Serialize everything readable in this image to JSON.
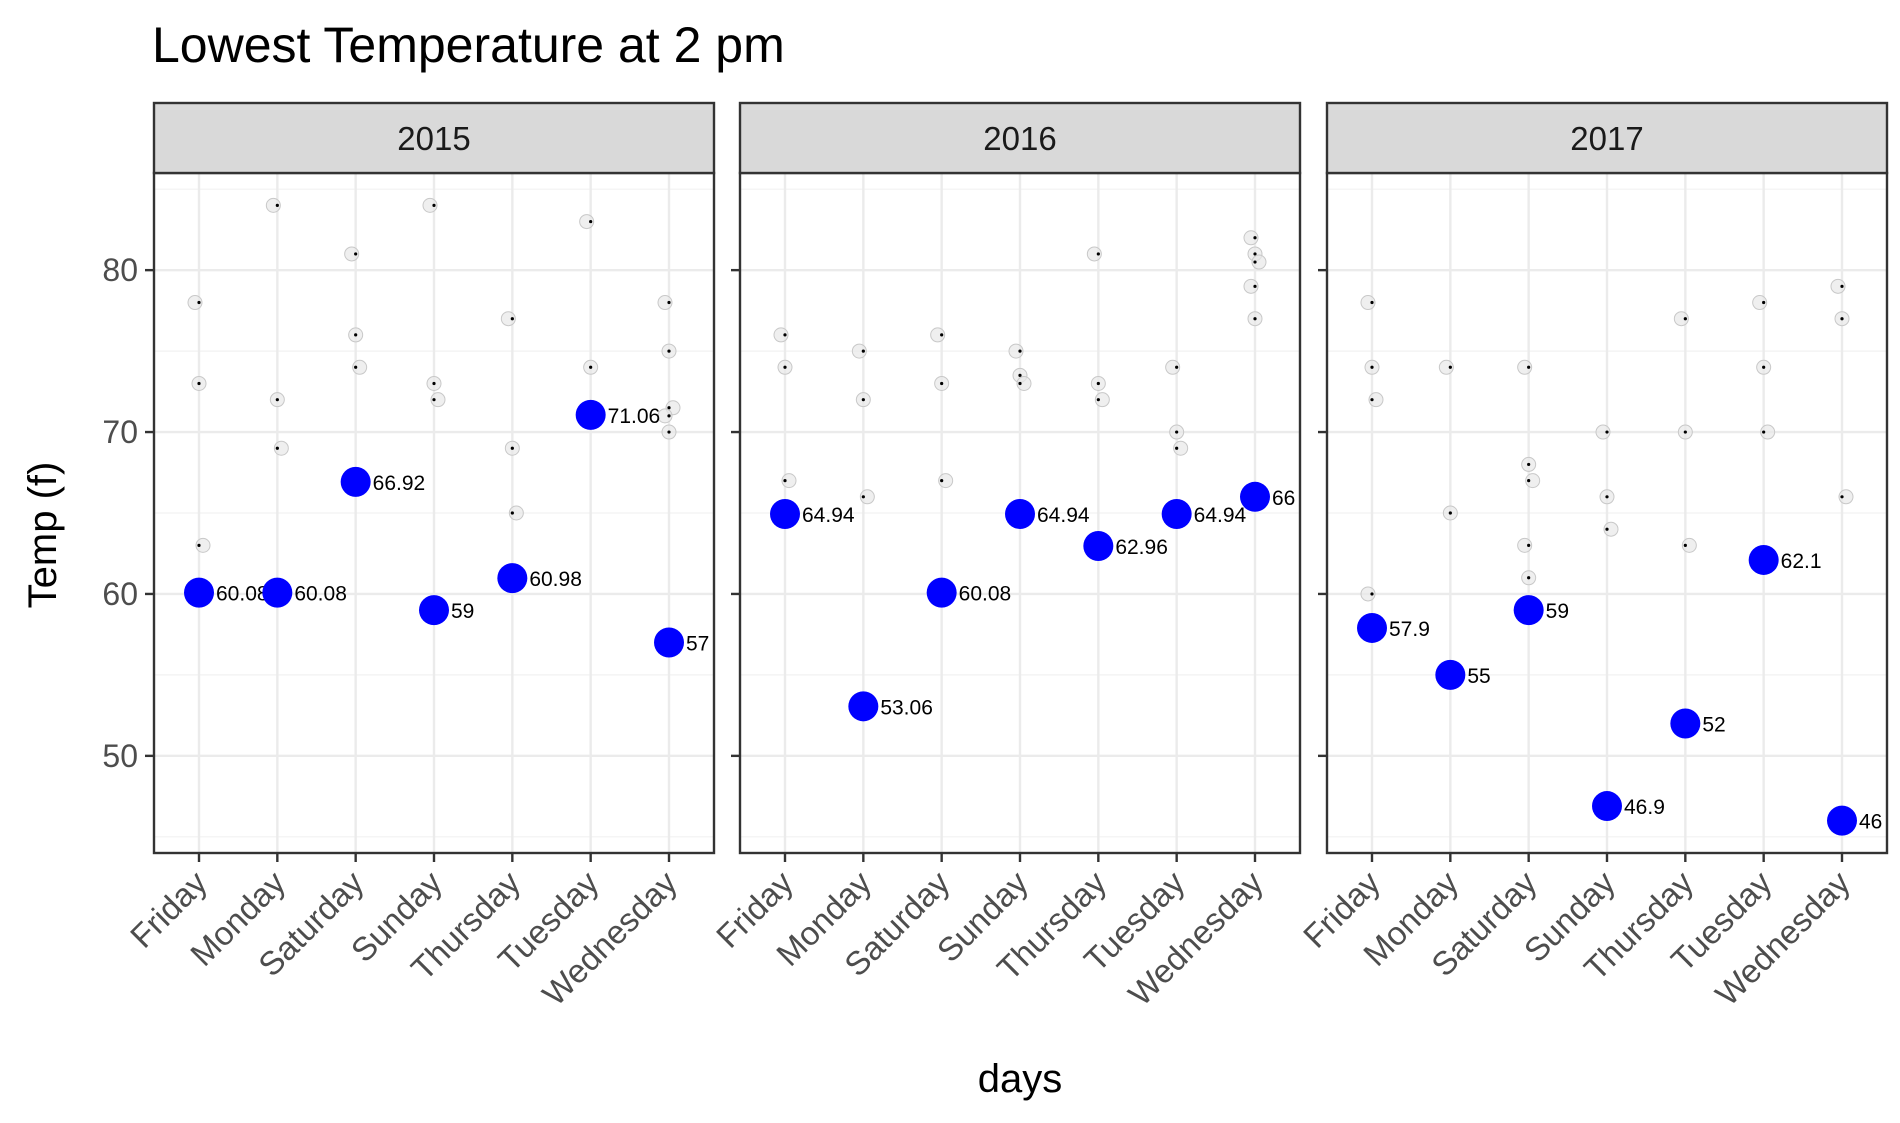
{
  "chart_data": {
    "type": "scatter",
    "title": "Lowest Temperature at 2 pm",
    "xlabel": "days",
    "ylabel": "Temp (f)",
    "ylim": [
      44,
      86
    ],
    "yticks": [
      50,
      60,
      70,
      80
    ],
    "grid": true,
    "categories": [
      "Friday",
      "Monday",
      "Saturday",
      "Sunday",
      "Thursday",
      "Tuesday",
      "Wednesday"
    ],
    "colors": {
      "highlight": "#0000ff",
      "background_point_fill": "#e8e8e8",
      "background_point_stroke": "#c8c8c8",
      "strip_fill": "#d9d9d9",
      "panel_border": "#333333",
      "grid": "#ebebeb"
    },
    "panels": [
      {
        "facet": "2015",
        "lowest": [
          {
            "day": "Friday",
            "value": 60.08,
            "label": "60.08"
          },
          {
            "day": "Monday",
            "value": 60.08,
            "label": "60.08"
          },
          {
            "day": "Saturday",
            "value": 66.92,
            "label": "66.92"
          },
          {
            "day": "Sunday",
            "value": 59,
            "label": "59"
          },
          {
            "day": "Thursday",
            "value": 60.98,
            "label": "60.98"
          },
          {
            "day": "Tuesday",
            "value": 71.06,
            "label": "71.06"
          },
          {
            "day": "Wednesday",
            "value": 57,
            "label": "57"
          }
        ],
        "observations": [
          {
            "day": "Friday",
            "values": [
              78,
              73,
              63
            ]
          },
          {
            "day": "Monday",
            "values": [
              84,
              72,
              69
            ]
          },
          {
            "day": "Saturday",
            "values": [
              81,
              76,
              74
            ]
          },
          {
            "day": "Sunday",
            "values": [
              84,
              73,
              72
            ]
          },
          {
            "day": "Thursday",
            "values": [
              77,
              69,
              65
            ]
          },
          {
            "day": "Tuesday",
            "values": [
              83,
              74
            ]
          },
          {
            "day": "Wednesday",
            "values": [
              78,
              75,
              71.5,
              71,
              70
            ]
          }
        ]
      },
      {
        "facet": "2016",
        "lowest": [
          {
            "day": "Friday",
            "value": 64.94,
            "label": "64.94"
          },
          {
            "day": "Monday",
            "value": 53.06,
            "label": "53.06"
          },
          {
            "day": "Saturday",
            "value": 60.08,
            "label": "60.08"
          },
          {
            "day": "Sunday",
            "value": 64.94,
            "label": "64.94"
          },
          {
            "day": "Thursday",
            "value": 62.96,
            "label": "62.96"
          },
          {
            "day": "Tuesday",
            "value": 64.94,
            "label": "64.94"
          },
          {
            "day": "Wednesday",
            "value": 66,
            "label": "66"
          }
        ],
        "observations": [
          {
            "day": "Friday",
            "values": [
              76,
              74,
              67
            ]
          },
          {
            "day": "Monday",
            "values": [
              75,
              72,
              66
            ]
          },
          {
            "day": "Saturday",
            "values": [
              76,
              73,
              67
            ]
          },
          {
            "day": "Sunday",
            "values": [
              75,
              73.5,
              73
            ]
          },
          {
            "day": "Thursday",
            "values": [
              81,
              73,
              72
            ]
          },
          {
            "day": "Tuesday",
            "values": [
              74,
              70,
              69
            ]
          },
          {
            "day": "Wednesday",
            "values": [
              82,
              81,
              80.5,
              79,
              77
            ]
          }
        ]
      },
      {
        "facet": "2017",
        "lowest": [
          {
            "day": "Friday",
            "value": 57.9,
            "label": "57.9"
          },
          {
            "day": "Monday",
            "value": 55,
            "label": "55"
          },
          {
            "day": "Saturday",
            "value": 59,
            "label": "59"
          },
          {
            "day": "Sunday",
            "value": 46.9,
            "label": "46.9"
          },
          {
            "day": "Thursday",
            "value": 52,
            "label": "52"
          },
          {
            "day": "Tuesday",
            "value": 62.1,
            "label": "62.1"
          },
          {
            "day": "Wednesday",
            "value": 46,
            "label": "46"
          }
        ],
        "observations": [
          {
            "day": "Friday",
            "values": [
              78,
              74,
              72,
              60
            ]
          },
          {
            "day": "Monday",
            "values": [
              74,
              65
            ]
          },
          {
            "day": "Saturday",
            "values": [
              74,
              68,
              67,
              63,
              61
            ]
          },
          {
            "day": "Sunday",
            "values": [
              70,
              66,
              64
            ]
          },
          {
            "day": "Thursday",
            "values": [
              77,
              70,
              63
            ]
          },
          {
            "day": "Tuesday",
            "values": [
              78,
              74,
              70
            ]
          },
          {
            "day": "Wednesday",
            "values": [
              79,
              77,
              66
            ]
          }
        ]
      }
    ]
  }
}
